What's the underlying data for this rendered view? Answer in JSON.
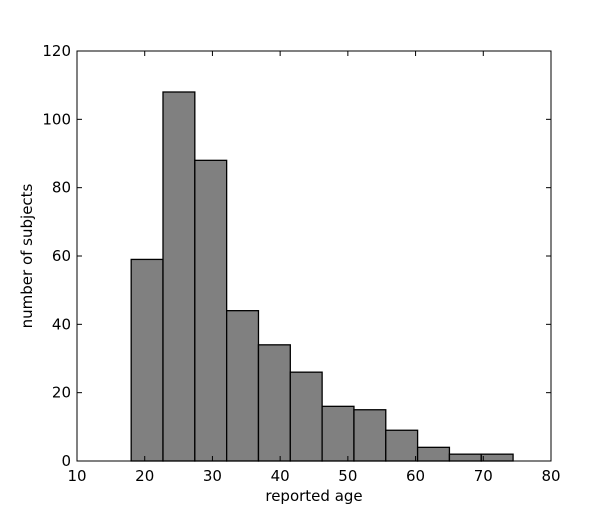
{
  "chart_data": {
    "type": "bar",
    "title": "",
    "xlabel": "reported age",
    "ylabel": "number of subjects",
    "xlim": [
      10,
      80
    ],
    "ylim": [
      0,
      120
    ],
    "xticks": [
      10,
      20,
      30,
      40,
      50,
      60,
      70,
      80
    ],
    "yticks": [
      0,
      20,
      40,
      60,
      80,
      100,
      120
    ],
    "grid": false,
    "bar_color": "#808080",
    "edge_color": "#000000",
    "bins": [
      {
        "x0": 18.0,
        "x1": 22.7,
        "value": 59
      },
      {
        "x0": 22.7,
        "x1": 27.4,
        "value": 108
      },
      {
        "x0": 27.4,
        "x1": 32.1,
        "value": 88
      },
      {
        "x0": 32.1,
        "x1": 36.8,
        "value": 44
      },
      {
        "x0": 36.8,
        "x1": 41.5,
        "value": 34
      },
      {
        "x0": 41.5,
        "x1": 46.2,
        "value": 26
      },
      {
        "x0": 46.2,
        "x1": 50.9,
        "value": 16
      },
      {
        "x0": 50.9,
        "x1": 55.6,
        "value": 15
      },
      {
        "x0": 55.6,
        "x1": 60.3,
        "value": 9
      },
      {
        "x0": 60.3,
        "x1": 65.0,
        "value": 4
      },
      {
        "x0": 65.0,
        "x1": 69.7,
        "value": 2
      },
      {
        "x0": 69.7,
        "x1": 74.4,
        "value": 2
      }
    ]
  }
}
